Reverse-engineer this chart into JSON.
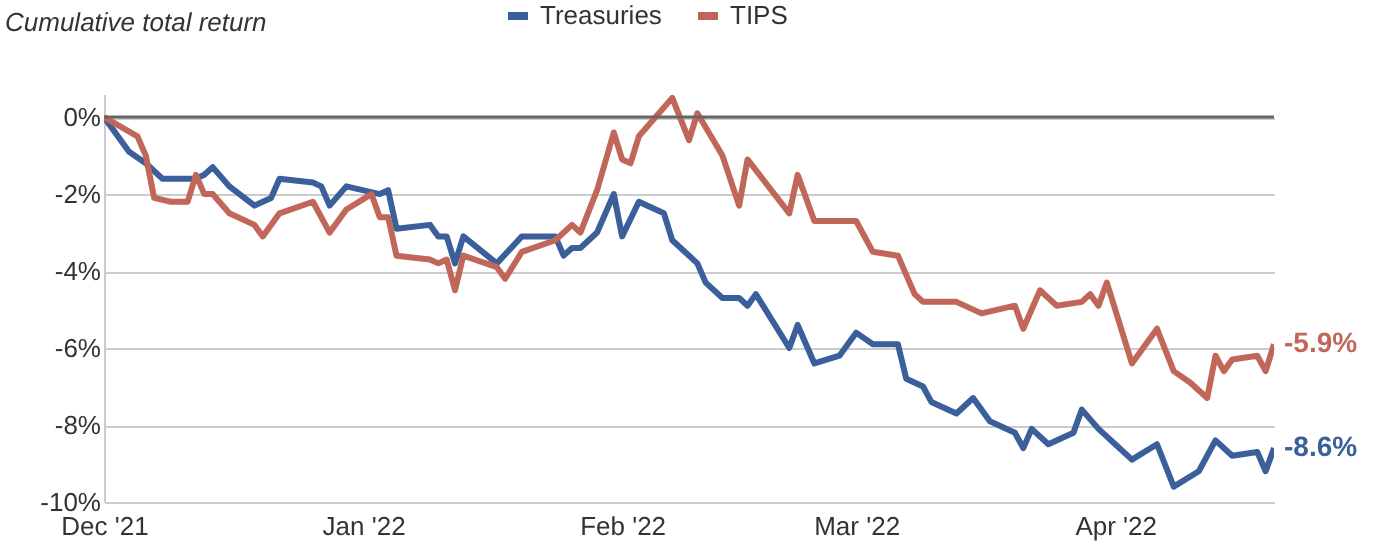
{
  "chart_data": {
    "type": "line",
    "ylabel": "Cumulative total return",
    "legend": "top",
    "grid": "y",
    "marker": "none",
    "line_style": "solid",
    "xlim": [
      "2021-12-01",
      "2022-04-20"
    ],
    "xticks": [
      {
        "value": "2021-12-01",
        "label": "Dec '21"
      },
      {
        "value": "2022-01-01",
        "label": "Jan '22"
      },
      {
        "value": "2022-02-01",
        "label": "Feb '22"
      },
      {
        "value": "2022-03-01",
        "label": "Mar '22"
      },
      {
        "value": "2022-04-01",
        "label": "Apr '22"
      }
    ],
    "ylim": [
      -10,
      0.6
    ],
    "yticks": [
      {
        "value": 0,
        "label": "0%"
      },
      {
        "value": -2,
        "label": "-2%"
      },
      {
        "value": -4,
        "label": "-4%"
      },
      {
        "value": -6,
        "label": "-6%"
      },
      {
        "value": -8,
        "label": "-8%"
      },
      {
        "value": -10,
        "label": "-10%"
      }
    ],
    "ref_lines": [
      {
        "axis": "y",
        "value": 0,
        "color": "#666666"
      }
    ],
    "series": [
      {
        "name": "Treasuries",
        "color": "#3a5f9a",
        "x": [
          "2021-12-01",
          "2021-12-04",
          "2021-12-06",
          "2021-12-08",
          "2021-12-12",
          "2021-12-13",
          "2021-12-14",
          "2021-12-16",
          "2021-12-19",
          "2021-12-21",
          "2021-12-22",
          "2021-12-26",
          "2021-12-27",
          "2021-12-28",
          "2021-12-30",
          "2022-01-03",
          "2022-01-04",
          "2022-01-05",
          "2022-01-09",
          "2022-01-10",
          "2022-01-11",
          "2022-01-12",
          "2022-01-13",
          "2022-01-17",
          "2022-01-20",
          "2022-01-24",
          "2022-01-25",
          "2022-01-26",
          "2022-01-27",
          "2022-01-29",
          "2022-01-31",
          "2022-02-01",
          "2022-02-03",
          "2022-02-06",
          "2022-02-07",
          "2022-02-10",
          "2022-02-11",
          "2022-02-13",
          "2022-02-15",
          "2022-02-16",
          "2022-02-17",
          "2022-02-21",
          "2022-02-22",
          "2022-02-24",
          "2022-02-27",
          "2022-03-01",
          "2022-03-03",
          "2022-03-06",
          "2022-03-07",
          "2022-03-09",
          "2022-03-10",
          "2022-03-13",
          "2022-03-15",
          "2022-03-17",
          "2022-03-20",
          "2022-03-21",
          "2022-03-22",
          "2022-03-24",
          "2022-03-27",
          "2022-03-28",
          "2022-03-30",
          "2022-04-01",
          "2022-04-03",
          "2022-04-06",
          "2022-04-08",
          "2022-04-11",
          "2022-04-13",
          "2022-04-15",
          "2022-04-18",
          "2022-04-19",
          "2022-04-20"
        ],
        "values": [
          0,
          -0.9,
          -1.2,
          -1.6,
          -1.6,
          -1.5,
          -1.3,
          -1.8,
          -2.3,
          -2.1,
          -1.6,
          -1.7,
          -1.8,
          -2.3,
          -1.8,
          -2.0,
          -1.9,
          -2.9,
          -2.8,
          -3.1,
          -3.1,
          -3.8,
          -3.1,
          -3.8,
          -3.1,
          -3.1,
          -3.6,
          -3.4,
          -3.4,
          -3.0,
          -2.0,
          -3.1,
          -2.2,
          -2.5,
          -3.2,
          -3.8,
          -4.3,
          -4.7,
          -4.7,
          -4.9,
          -4.6,
          -6.0,
          -5.4,
          -6.4,
          -6.2,
          -5.6,
          -5.9,
          -5.9,
          -6.8,
          -7.0,
          -7.4,
          -7.7,
          -7.3,
          -7.9,
          -8.2,
          -8.6,
          -8.1,
          -8.5,
          -8.2,
          -7.6,
          -8.1,
          -8.5,
          -8.9,
          -8.5,
          -9.6,
          -9.2,
          -8.4,
          -8.8,
          -8.7,
          -9.2,
          -8.6
        ],
        "value_labels": [
          null,
          null,
          null,
          null,
          null,
          null,
          null,
          null,
          null,
          null,
          null,
          null,
          null,
          null,
          null,
          null,
          null,
          null,
          null,
          null,
          null,
          null,
          null,
          null,
          null,
          null,
          null,
          null,
          null,
          null,
          null,
          null,
          null,
          null,
          null,
          null,
          null,
          null,
          null,
          null,
          null,
          null,
          null,
          null,
          null,
          null,
          null,
          null,
          null,
          null,
          null,
          null,
          null,
          null,
          null,
          null,
          null,
          null,
          null,
          null,
          null,
          null,
          null,
          null,
          null,
          null,
          null,
          null,
          null,
          null,
          "-8.6%"
        ]
      },
      {
        "name": "TIPS",
        "color": "#c0675a",
        "x": [
          "2021-12-01",
          "2021-12-05",
          "2021-12-06",
          "2021-12-07",
          "2021-12-09",
          "2021-12-11",
          "2021-12-12",
          "2021-12-13",
          "2021-12-14",
          "2021-12-16",
          "2021-12-19",
          "2021-12-20",
          "2021-12-22",
          "2021-12-26",
          "2021-12-28",
          "2021-12-30",
          "2022-01-02",
          "2022-01-03",
          "2022-01-04",
          "2022-01-05",
          "2022-01-09",
          "2022-01-10",
          "2022-01-11",
          "2022-01-12",
          "2022-01-13",
          "2022-01-17",
          "2022-01-18",
          "2022-01-20",
          "2022-01-24",
          "2022-01-26",
          "2022-01-27",
          "2022-01-29",
          "2022-01-31",
          "2022-02-01",
          "2022-02-02",
          "2022-02-03",
          "2022-02-07",
          "2022-02-09",
          "2022-02-10",
          "2022-02-13",
          "2022-02-15",
          "2022-02-16",
          "2022-02-21",
          "2022-02-22",
          "2022-02-24",
          "2022-02-27",
          "2022-03-01",
          "2022-03-03",
          "2022-03-06",
          "2022-03-08",
          "2022-03-09",
          "2022-03-13",
          "2022-03-16",
          "2022-03-20",
          "2022-03-21",
          "2022-03-23",
          "2022-03-25",
          "2022-03-28",
          "2022-03-29",
          "2022-03-30",
          "2022-03-31",
          "2022-04-03",
          "2022-04-06",
          "2022-04-08",
          "2022-04-10",
          "2022-04-12",
          "2022-04-13",
          "2022-04-14",
          "2022-04-15",
          "2022-04-18",
          "2022-04-19",
          "2022-04-20"
        ],
        "values": [
          0,
          -0.5,
          -1.0,
          -2.1,
          -2.2,
          -2.2,
          -1.5,
          -2.0,
          -2.0,
          -2.5,
          -2.8,
          -3.1,
          -2.5,
          -2.2,
          -3.0,
          -2.4,
          -2.0,
          -2.6,
          -2.6,
          -3.6,
          -3.7,
          -3.8,
          -3.7,
          -4.5,
          -3.6,
          -3.9,
          -4.2,
          -3.5,
          -3.2,
          -2.8,
          -3.0,
          -1.9,
          -0.4,
          -1.1,
          -1.2,
          -0.5,
          0.5,
          -0.6,
          0.1,
          -1.0,
          -2.3,
          -1.1,
          -2.5,
          -1.5,
          -2.7,
          -2.7,
          -2.7,
          -3.5,
          -3.6,
          -4.6,
          -4.8,
          -4.8,
          -5.1,
          -4.9,
          -5.5,
          -4.5,
          -4.9,
          -4.8,
          -4.6,
          -4.9,
          -4.3,
          -6.4,
          -5.5,
          -6.6,
          -6.9,
          -7.3,
          -6.2,
          -6.6,
          -6.3,
          -6.2,
          -6.6,
          -5.9
        ],
        "value_labels": [
          null,
          null,
          null,
          null,
          null,
          null,
          null,
          null,
          null,
          null,
          null,
          null,
          null,
          null,
          null,
          null,
          null,
          null,
          null,
          null,
          null,
          null,
          null,
          null,
          null,
          null,
          null,
          null,
          null,
          null,
          null,
          null,
          null,
          null,
          null,
          null,
          null,
          null,
          null,
          null,
          null,
          null,
          null,
          null,
          null,
          null,
          null,
          null,
          null,
          null,
          null,
          null,
          null,
          null,
          null,
          null,
          null,
          null,
          null,
          null,
          null,
          null,
          null,
          null,
          null,
          null,
          null,
          null,
          null,
          null,
          null,
          "-5.9%"
        ]
      }
    ]
  }
}
